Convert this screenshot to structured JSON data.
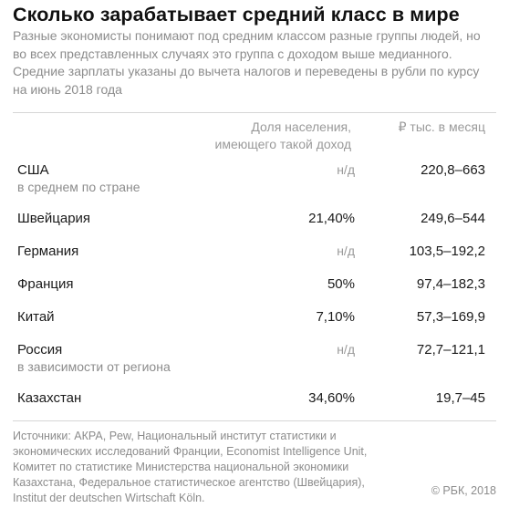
{
  "header": {
    "title": "Сколько зарабатывает средний класс в мире",
    "subtitle": "Разные экономисты понимают под средним классом разные группы людей, но во всех представленных случаях это группа с доходом выше медианного. Средние зарплаты указаны до вычета налогов и переведены в рубли по курсу на июнь 2018 года"
  },
  "chart_data": {
    "type": "table",
    "columns": [
      "Доля населения, имеющего такой доход",
      "₽ тыс. в месяц"
    ],
    "column_share_line1": "Доля населения,",
    "column_share_line2": "имеющего такой доход",
    "column_income": "₽ тыс. в месяц",
    "rows": [
      {
        "country": "США",
        "note": "в среднем по стране",
        "share": "н/д",
        "range": "220,8–663"
      },
      {
        "country": "Швейцария",
        "note": "",
        "share": "21,40%",
        "range": "249,6–544"
      },
      {
        "country": "Германия",
        "note": "",
        "share": "н/д",
        "range": "103,5–192,2"
      },
      {
        "country": "Франция",
        "note": "",
        "share": "50%",
        "range": "97,4–182,3"
      },
      {
        "country": "Китай",
        "note": "",
        "share": "7,10%",
        "range": "57,3–169,9"
      },
      {
        "country": "Россия",
        "note": "в зависимости от региона",
        "share": "н/д",
        "range": "72,7–121,1"
      },
      {
        "country": "Казахстан",
        "note": "",
        "share": "34,60%",
        "range": "19,7–45"
      }
    ]
  },
  "footer": {
    "sources": "Источники: АКРА, Pew, Национальный институт статистики и экономических исследований Франции, Economist Intelligence Unit, Комитет по статистике Министерства национальной экономики Казахстана, Федеральное статистическое агентство (Швейцария), Institut der deutschen Wirtschaft Köln.",
    "copyright": "© РБК, 2018"
  }
}
